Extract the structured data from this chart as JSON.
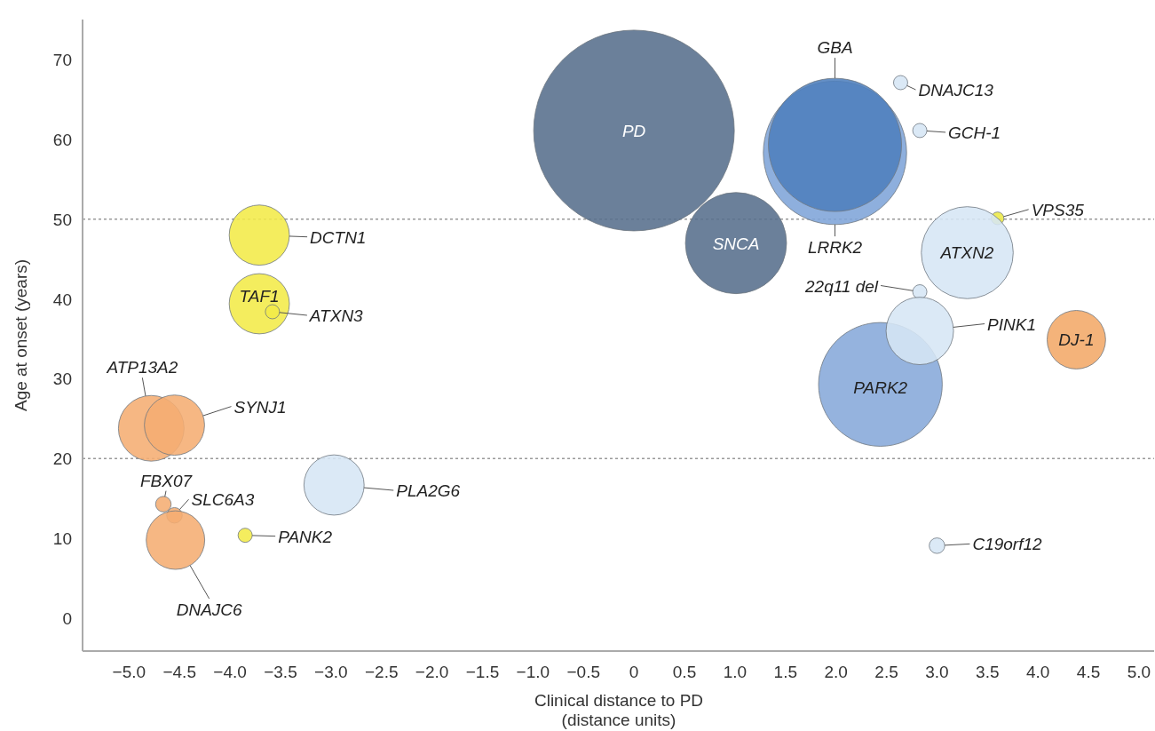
{
  "chart_data": {
    "type": "bubble",
    "xlabel": "Clinical distance to PD\n(distance units)",
    "ylabel": "Age at onset (years)",
    "xlim": [
      -5.46,
      5.15
    ],
    "ylim": [
      -4.1,
      75
    ],
    "xticks": [
      {
        "value": -5,
        "label": "−5.0"
      },
      {
        "value": -4.5,
        "label": "−4.5"
      },
      {
        "value": -4,
        "label": "−4.0"
      },
      {
        "value": -3.5,
        "label": "−3.5"
      },
      {
        "value": -3,
        "label": "−3.0"
      },
      {
        "value": -2.5,
        "label": "−2.5"
      },
      {
        "value": -2,
        "label": "−2.0"
      },
      {
        "value": -1.5,
        "label": "−1.5"
      },
      {
        "value": -1,
        "label": "−1.0"
      },
      {
        "value": -0.5,
        "label": "−0.5"
      },
      0,
      0.5,
      {
        "value": 1,
        "label": "1.0"
      },
      1.5,
      {
        "value": 2,
        "label": "2.0"
      },
      2.5,
      {
        "value": 3,
        "label": "3.0"
      },
      3.5,
      {
        "value": 4,
        "label": "4.0"
      },
      4.5,
      {
        "value": 5,
        "label": "5.0"
      }
    ],
    "yticks": [
      0,
      10,
      20,
      30,
      40,
      50,
      60,
      70
    ],
    "grid": false,
    "ref_lines": [
      {
        "axis": "y",
        "value": 50,
        "color": "#999999",
        "line_style": "dotted"
      },
      {
        "axis": "y",
        "value": 20,
        "color": "#999999",
        "line_style": "dotted"
      }
    ],
    "series": [
      {
        "x": [
          0,
          1.01,
          1.99,
          1.99,
          2.64,
          2.83,
          3.6,
          3.3,
          2.83,
          2.44,
          2.83,
          4.38,
          3.0,
          -3.71,
          -3.71,
          -3.58,
          -4.78,
          -4.55,
          -2.97,
          -4.66,
          -4.55,
          -4.54,
          -3.85
        ],
        "values": [
          61.1,
          47,
          58.3,
          59.3,
          67.1,
          61.1,
          50.1,
          45.8,
          40.9,
          29.3,
          36,
          34.9,
          9.1,
          48,
          39.4,
          38.4,
          23.8,
          24.2,
          16.7,
          14.3,
          12.9,
          9.8,
          10.4
        ],
        "sizes": [
          1,
          0.254,
          0.51,
          0.44,
          0.005,
          0.005,
          0.004,
          0.21,
          0.005,
          0.38,
          0.113,
          0.085,
          0.006,
          0.09,
          0.09,
          0.005,
          0.107,
          0.09,
          0.09,
          0.006,
          0.006,
          0.085,
          0.005
        ],
        "colors": [
          "#566e8c",
          "#566e8c",
          "#7ea4d8",
          "#4f7fbd",
          "#d6e6f5",
          "#d6e6f5",
          "#ece844",
          "#d6e6f5",
          "#d6e6f5",
          "#86a9da",
          "#d6e6f5",
          "#f2a868",
          "#d6e6f5",
          "#f2ea48",
          "#f2ea48",
          "#f2ea48",
          "#f5ad72",
          "#f5ad72",
          "#d6e6f5",
          "#f5ad72",
          "#f5ad72",
          "#f5ad72",
          "#f2ea48"
        ]
      }
    ],
    "annotations": [
      {
        "text": "PD",
        "x": 0,
        "y": 61.1
      },
      {
        "text": "SNCA",
        "x": 1.01,
        "y": 47
      },
      "LRRK2",
      "GBA",
      {
        "text": "DNAJC13",
        "x": 2.64,
        "y": 67.1
      },
      {
        "text": "GCH-1",
        "x": 2.83,
        "y": 61.1
      },
      {
        "text": "VPS35",
        "x": 3.6,
        "y": 50.1
      },
      {
        "text": "ATXN2",
        "x": 3.3,
        "y": 45.8
      },
      {
        "text": "22q11 del",
        "x": 2.83,
        "y": 40.9
      },
      {
        "text": "PARK2",
        "x": 2.44,
        "y": 29.3
      },
      "PINK1",
      {
        "text": "DJ-1",
        "x": 4.38,
        "y": 34.9
      },
      {
        "text": "C19orf12",
        "x": 3.0,
        "y": 9.1
      },
      {
        "text": "DCTN1",
        "x": -3.71,
        "y": 48
      },
      {
        "text": "TAF1",
        "x": -3.71,
        "y": 39.4
      },
      {
        "text": "ATXN3",
        "x": -3.58,
        "y": 38.4
      },
      "ATP13A2",
      "SYNJ1",
      "PLA2G6",
      {
        "text": "FBX07",
        "x": -4.66,
        "y": 14.3
      },
      {
        "text": "SLC6A3",
        "x": -4.55,
        "y": 12.9
      },
      "DNAJC6",
      {
        "text": "PANK2",
        "x": -3.85,
        "y": 10.4
      }
    ]
  }
}
